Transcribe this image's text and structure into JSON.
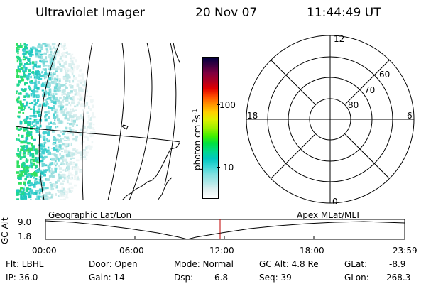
{
  "header": {
    "instrument": "Ultraviolet Imager",
    "date": "20 Nov 07",
    "time": "11:44:49 UT"
  },
  "colorbar": {
    "unit_label": "photon cm",
    "unit_exp1": "-2",
    "unit_mid": "s",
    "unit_exp2": "-1",
    "ticks": [
      "100",
      "10"
    ],
    "colors": [
      "#ffffff",
      "#e0f0f0",
      "#b0e8e8",
      "#80e0e0",
      "#40d8d8",
      "#00c8c0",
      "#00d890",
      "#00e040",
      "#40f000",
      "#a0f000",
      "#e0f000",
      "#ffd000",
      "#ff9000",
      "#ff5000",
      "#e00000",
      "#b00020",
      "#800040",
      "#400040",
      "#000040"
    ]
  },
  "polar": {
    "mlt_labels": [
      "12",
      "18",
      "6",
      "0"
    ],
    "lat_labels": [
      "60",
      "70",
      "80"
    ]
  },
  "timeline": {
    "left_label": "Geographic Lat/Lon",
    "right_label": "Apex MLat/MLT",
    "axis_label": "GC Alt",
    "y_ticks": [
      "9.0",
      "1.8"
    ],
    "x_ticks": [
      "00:00",
      "06:00",
      "12:00",
      "18:00",
      "23:59"
    ]
  },
  "info": {
    "flt": "Flt: LBHL",
    "ip": "IP: 36.0",
    "door": "Door: Open",
    "gain": "Gain: 14",
    "mode": "Mode: Normal",
    "dsp_label": "Dsp:",
    "dsp_value": "6.8",
    "gc_alt": "GC Alt: 4.8 Re",
    "seq": "Seq: 39",
    "glat_label": "GLat:",
    "glat_value": "-8.9",
    "glon_label": "GLon:",
    "glon_value": "268.3"
  }
}
